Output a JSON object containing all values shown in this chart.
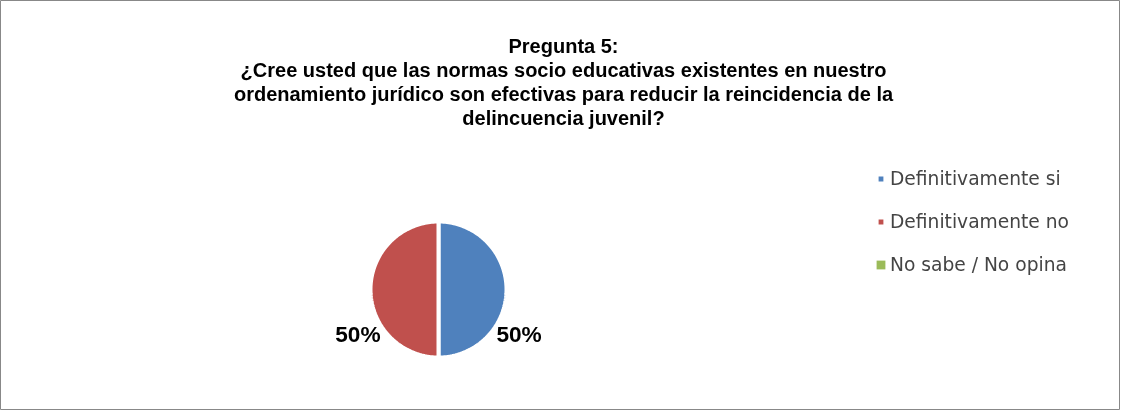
{
  "chart_data": {
    "type": "pie",
    "title": "Pregunta 5:",
    "subtitle": "¿Cree usted que las normas socio educativas existentes en nuestro ordenamiento jurídico son efectivas para reducir la reincidencia de la delincuencia juvenil?",
    "categories": [
      "Definitivamente si",
      "Definitivamente no",
      "No sabe / No opina"
    ],
    "values": [
      50,
      50,
      0
    ],
    "colors": [
      "#4f81bd",
      "#c0504d",
      "#9bbb59"
    ],
    "value_labels": [
      "50%",
      "50%",
      null
    ],
    "legend": "right"
  }
}
